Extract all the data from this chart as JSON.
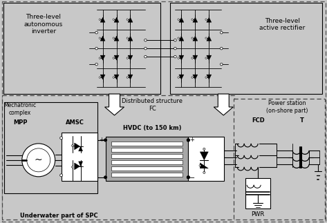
{
  "bg": "#c8c8c8",
  "white": "#ffffff",
  "black": "#000000",
  "cable_gray": "#a8a8a8",
  "labels": {
    "inv_title": "Three-level\nautonomous\ninverter",
    "rect_title": "Three-level\nactive rectifier",
    "mechatronic": "Mechatronic\ncomplex",
    "distributed": "Distributed structure\nFC",
    "power_station": "Power station\n(on-shore part)",
    "underwater": "Underwater part of SPC",
    "MPP": "MPP",
    "AMSC": "AMSC",
    "HVDC": "HVDC (to 150 km)",
    "FCD": "FCD",
    "T": "T",
    "PWR": "PWR"
  }
}
